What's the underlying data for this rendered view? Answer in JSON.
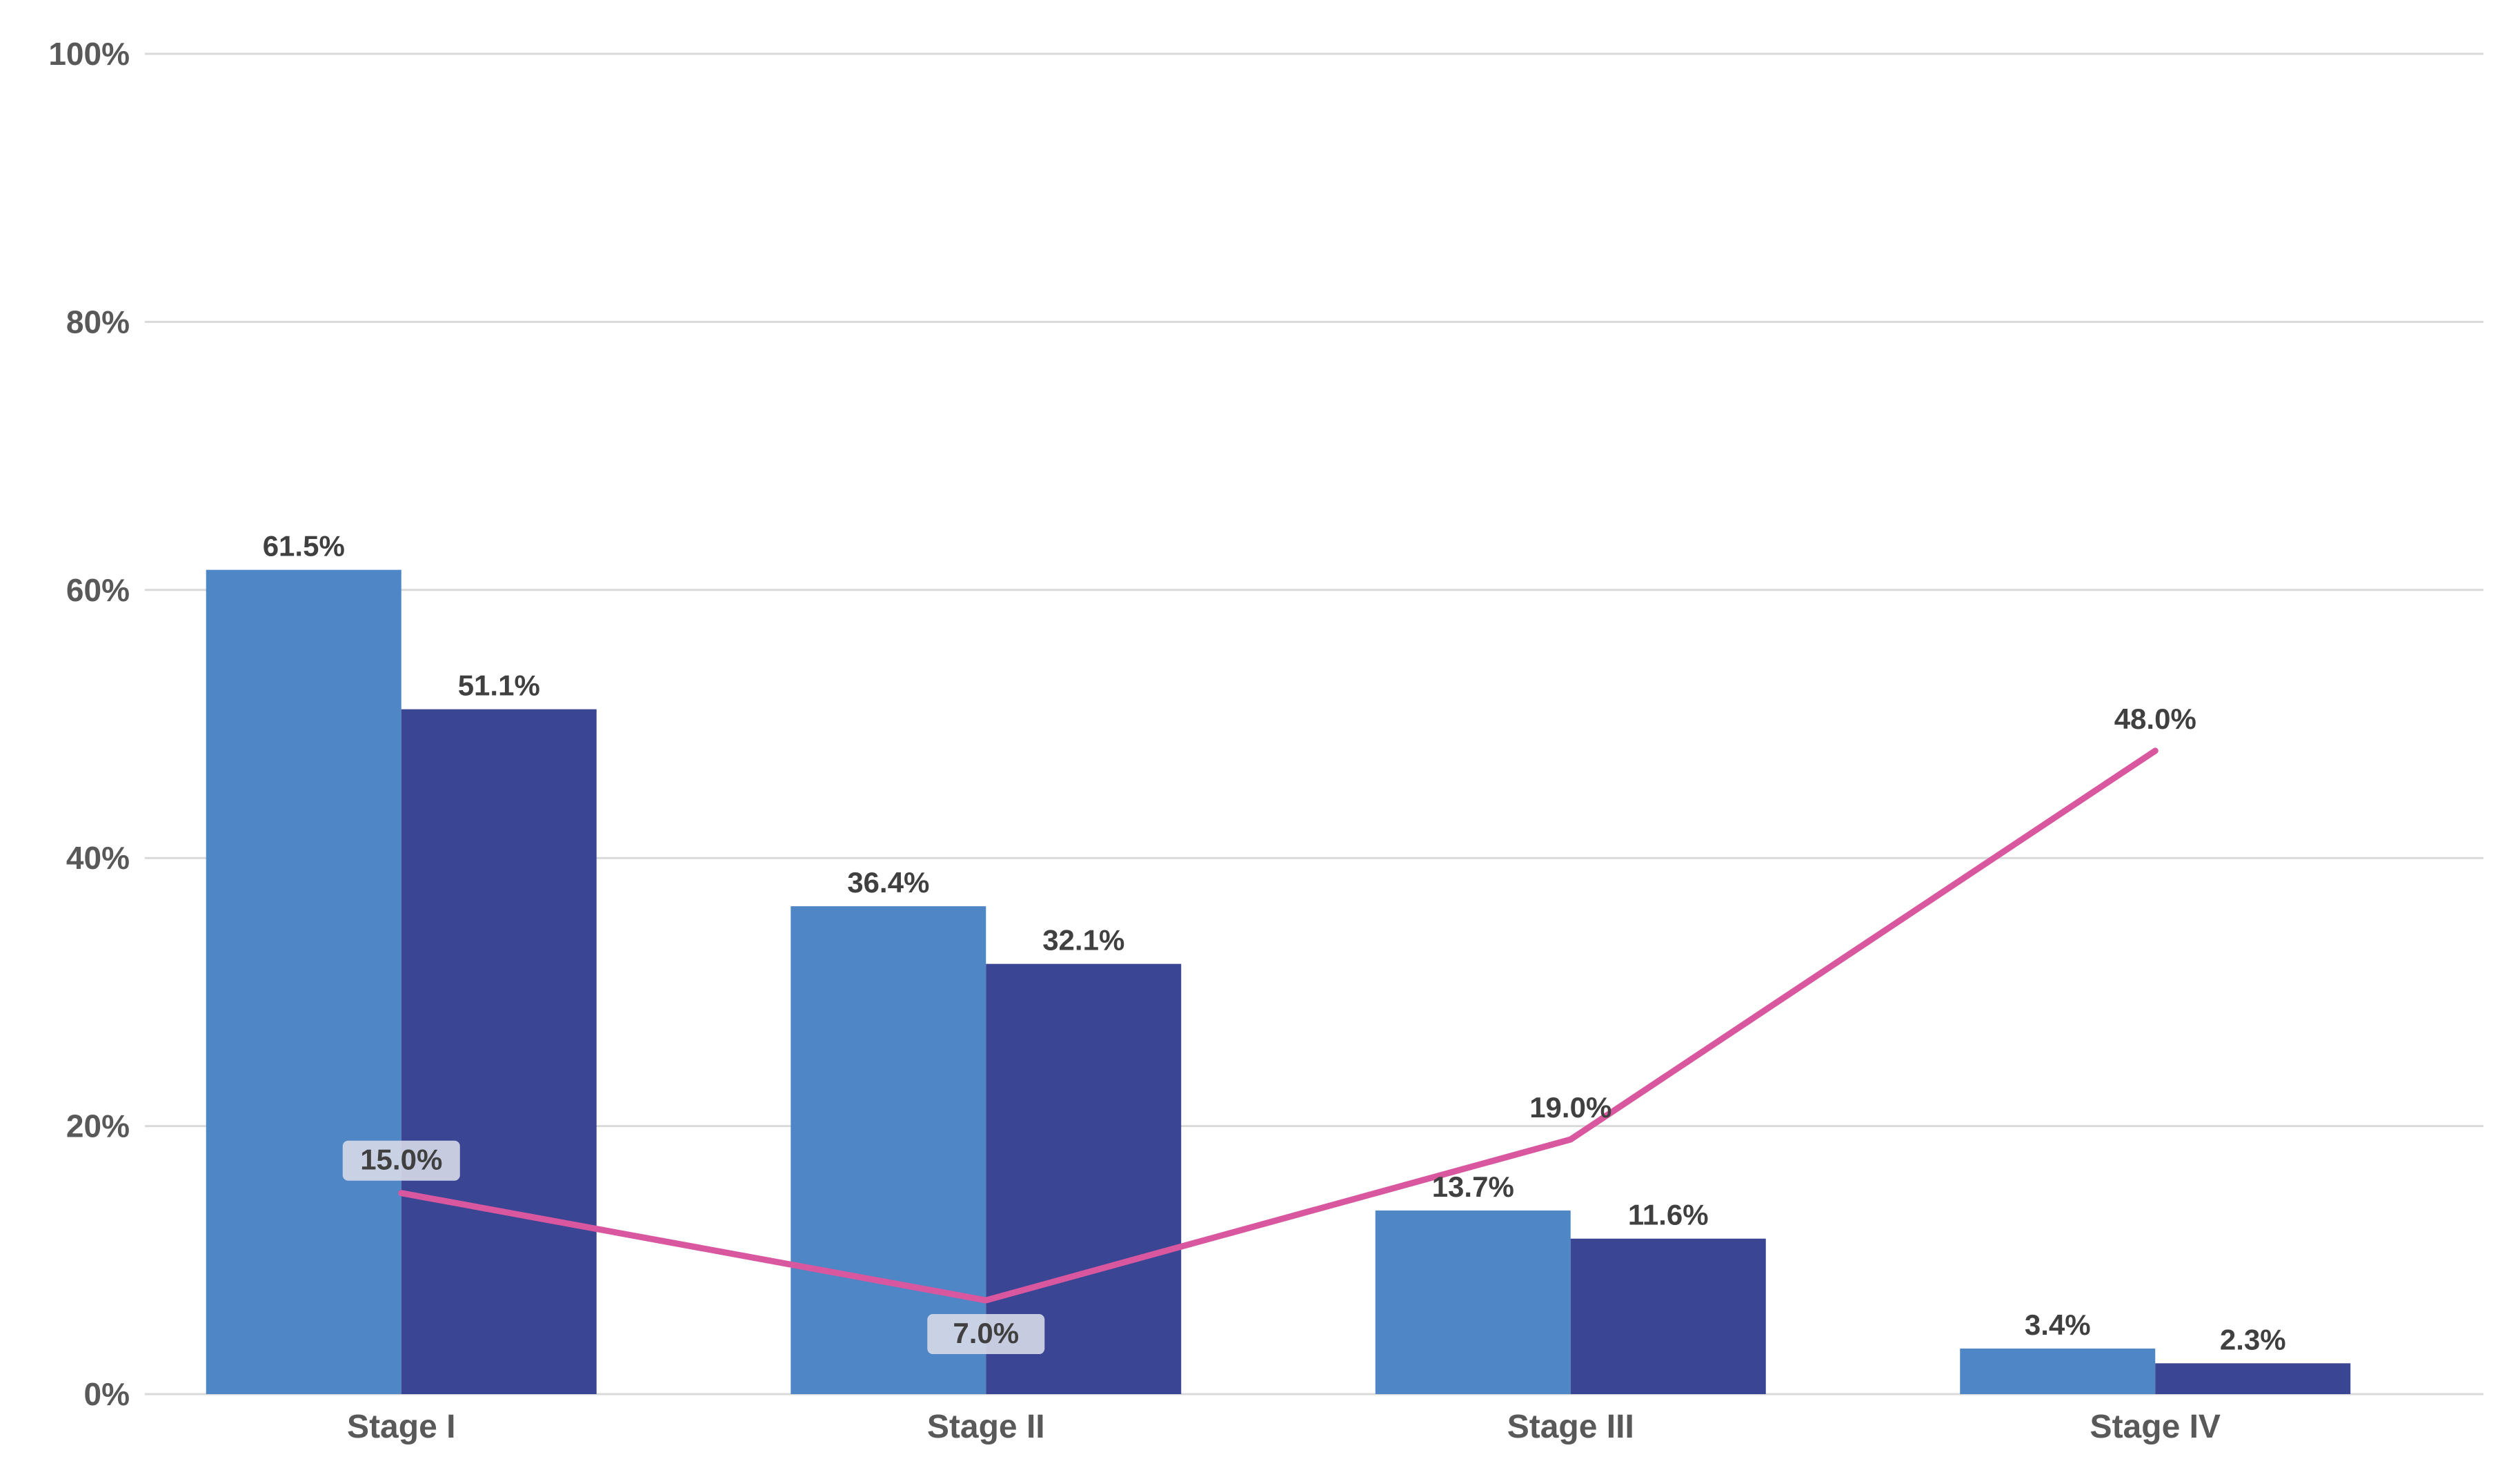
{
  "chart_data": {
    "type": "bar",
    "categories": [
      "Stage I",
      "Stage II",
      "Stage III",
      "Stage IV"
    ],
    "series": [
      {
        "type": "bar",
        "color": "#4f86c6",
        "values": [
          61.5,
          36.4,
          13.7,
          3.4
        ]
      },
      {
        "type": "bar",
        "color": "#3a4593",
        "values": [
          51.1,
          32.1,
          11.6,
          2.3
        ]
      },
      {
        "type": "line",
        "color": "#d9579f",
        "values": [
          15.0,
          7.0,
          19.0,
          48.0
        ]
      }
    ],
    "value_labels": [
      [
        "61.5%",
        "36.4%",
        "13.7%",
        "3.4%"
      ],
      [
        "51.1%",
        "32.1%",
        "11.6%",
        "2.3%"
      ],
      [
        "15.0%",
        "7.0%",
        "19.0%",
        "48.0%"
      ]
    ],
    "yticks": [
      "0%",
      "20%",
      "40%",
      "60%",
      "80%",
      "100%"
    ],
    "ylim": [
      0,
      100
    ],
    "grid": true,
    "legend": "none",
    "title": "",
    "xlabel": "",
    "ylabel": ""
  }
}
